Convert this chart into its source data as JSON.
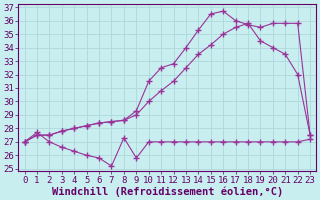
{
  "xlabel": "Windchill (Refroidissement éolien,°C)",
  "background_color": "#c8eef0",
  "grid_color": "#b0d8dc",
  "line_color": "#993399",
  "xlim": [
    -0.5,
    23.5
  ],
  "ylim": [
    24.8,
    37.2
  ],
  "xticks": [
    0,
    1,
    2,
    3,
    4,
    5,
    6,
    7,
    8,
    9,
    10,
    11,
    12,
    13,
    14,
    15,
    16,
    17,
    18,
    19,
    20,
    21,
    22,
    23
  ],
  "yticks": [
    25,
    26,
    27,
    28,
    29,
    30,
    31,
    32,
    33,
    34,
    35,
    36,
    37
  ],
  "line1_x": [
    0,
    1,
    2,
    3,
    4,
    5,
    6,
    7,
    8,
    9,
    10,
    11,
    12,
    13,
    14,
    15,
    16,
    17,
    18,
    19,
    20,
    21,
    22,
    23
  ],
  "line1_y": [
    27.0,
    27.7,
    27.0,
    26.6,
    26.3,
    26.0,
    25.8,
    25.2,
    27.3,
    25.8,
    27.0,
    27.0,
    27.0,
    27.0,
    27.0,
    27.0,
    27.0,
    27.0,
    27.0,
    27.0,
    27.0,
    27.0,
    27.0,
    27.2
  ],
  "line2_x": [
    0,
    1,
    2,
    3,
    4,
    5,
    6,
    7,
    8,
    9,
    10,
    11,
    12,
    13,
    14,
    15,
    16,
    17,
    18,
    19,
    20,
    21,
    22,
    23
  ],
  "line2_y": [
    27.0,
    27.5,
    27.5,
    27.8,
    28.0,
    28.2,
    28.4,
    28.5,
    28.6,
    29.0,
    30.0,
    30.8,
    31.5,
    32.5,
    33.5,
    34.2,
    35.0,
    35.5,
    35.8,
    34.5,
    34.0,
    33.5,
    32.0,
    27.5
  ],
  "line3_x": [
    0,
    1,
    2,
    3,
    4,
    5,
    6,
    7,
    8,
    9,
    10,
    11,
    12,
    13,
    14,
    15,
    16,
    17,
    18,
    19,
    20,
    21,
    22,
    23
  ],
  "line3_y": [
    27.0,
    27.5,
    27.5,
    27.8,
    28.0,
    28.2,
    28.4,
    28.5,
    28.6,
    29.3,
    31.5,
    32.5,
    32.8,
    34.0,
    35.3,
    36.5,
    36.7,
    36.0,
    35.7,
    35.5,
    35.8,
    35.8,
    35.8,
    27.5
  ],
  "font_family": "monospace",
  "tick_fontsize": 6.5,
  "xlabel_fontsize": 7.5
}
